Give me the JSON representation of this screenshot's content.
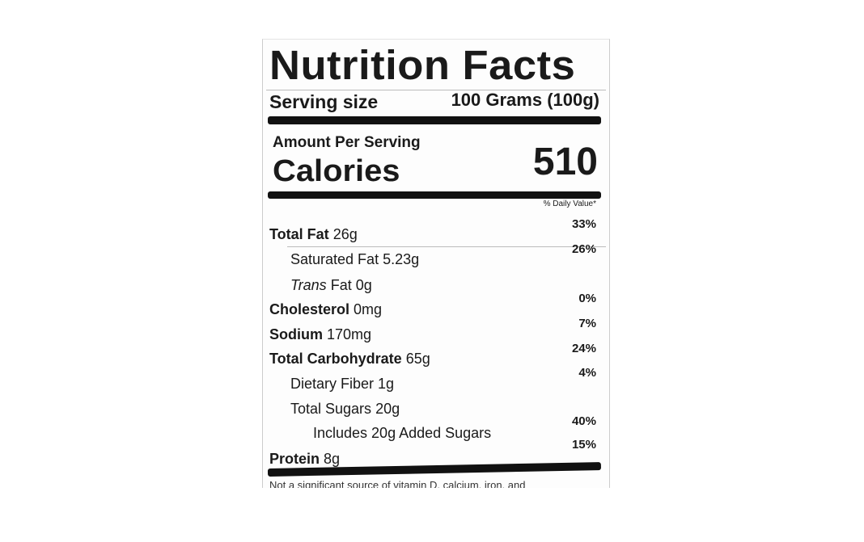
{
  "label": {
    "title": "Nutrition Facts",
    "serving_size_label": "Serving size",
    "serving_size_value": "100 Grams (100g)",
    "amount_per_serving": "Amount Per Serving",
    "calories_label": "Calories",
    "calories_value": "510",
    "daily_value_header": "% Daily Value*",
    "rows": [
      {
        "name": "Total Fat",
        "amount": "26g",
        "dv": "33%"
      },
      {
        "name": "Saturated Fat",
        "amount": "5.23g",
        "dv": "26%"
      },
      {
        "name": "Trans",
        "name_rest": "Fat",
        "amount": "0g",
        "dv": ""
      },
      {
        "name": "Cholesterol",
        "amount": "0mg",
        "dv": "0%"
      },
      {
        "name": "Sodium",
        "amount": "170mg",
        "dv": "7%"
      },
      {
        "name": "Total Carbohydrate",
        "amount": "65g",
        "dv": "24%"
      },
      {
        "name": "Dietary Fiber",
        "amount": "1g",
        "dv": "4%"
      },
      {
        "name": "Total Sugars",
        "amount": "20g",
        "dv": ""
      },
      {
        "name": "Includes 20g Added Sugars",
        "amount": "",
        "dv": "40%"
      },
      {
        "name": "Protein",
        "amount": "8g",
        "dv": "15%"
      }
    ],
    "footnote": "Not a significant source of vitamin D, calcium, iron, and"
  }
}
